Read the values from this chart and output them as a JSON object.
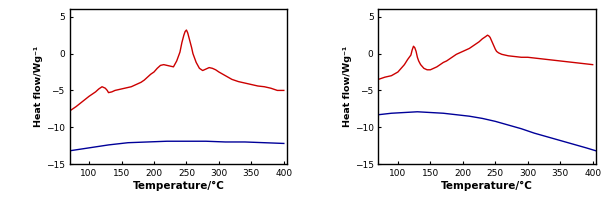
{
  "xlim": [
    70,
    405
  ],
  "ylim": [
    -15,
    6
  ],
  "yticks": [
    -15,
    -10,
    -5,
    0,
    5
  ],
  "xticks": [
    100,
    150,
    200,
    250,
    300,
    350,
    400
  ],
  "xlabel": "Temperature/°C",
  "ylabel": "Heat flow/Wg⁻¹",
  "red_color": "#cc0000",
  "blue_color": "#000099",
  "linewidth": 1.0,
  "left_red_x": [
    70,
    80,
    90,
    100,
    110,
    115,
    120,
    125,
    128,
    130,
    135,
    140,
    145,
    150,
    155,
    160,
    165,
    170,
    175,
    180,
    185,
    190,
    195,
    200,
    205,
    210,
    215,
    220,
    225,
    230,
    235,
    240,
    243,
    246,
    248,
    250,
    252,
    255,
    258,
    260,
    265,
    270,
    275,
    280,
    285,
    290,
    295,
    300,
    310,
    320,
    330,
    340,
    350,
    360,
    370,
    380,
    390,
    400
  ],
  "left_red_y": [
    -7.8,
    -7.2,
    -6.5,
    -5.8,
    -5.2,
    -4.8,
    -4.5,
    -4.7,
    -5.0,
    -5.3,
    -5.2,
    -5.0,
    -4.9,
    -4.8,
    -4.7,
    -4.6,
    -4.5,
    -4.3,
    -4.1,
    -3.9,
    -3.6,
    -3.2,
    -2.8,
    -2.5,
    -2.0,
    -1.6,
    -1.5,
    -1.6,
    -1.7,
    -1.8,
    -1.0,
    0.2,
    1.5,
    2.5,
    3.0,
    3.2,
    2.8,
    1.8,
    0.8,
    0.0,
    -1.2,
    -2.0,
    -2.3,
    -2.1,
    -1.9,
    -2.0,
    -2.2,
    -2.5,
    -3.0,
    -3.5,
    -3.8,
    -4.0,
    -4.2,
    -4.4,
    -4.5,
    -4.7,
    -5.0,
    -5.0
  ],
  "left_blue_x": [
    70,
    100,
    130,
    160,
    190,
    220,
    250,
    280,
    310,
    340,
    370,
    400
  ],
  "left_blue_y": [
    -13.2,
    -12.8,
    -12.4,
    -12.1,
    -12.0,
    -11.9,
    -11.9,
    -11.9,
    -12.0,
    -12.0,
    -12.1,
    -12.2
  ],
  "right_red_x": [
    70,
    80,
    90,
    100,
    105,
    110,
    115,
    120,
    122,
    124,
    126,
    128,
    130,
    132,
    135,
    140,
    145,
    150,
    155,
    160,
    165,
    170,
    175,
    180,
    185,
    190,
    195,
    200,
    205,
    210,
    215,
    220,
    225,
    230,
    235,
    238,
    240,
    242,
    244,
    246,
    248,
    250,
    252,
    255,
    260,
    265,
    270,
    280,
    290,
    300,
    310,
    320,
    330,
    340,
    350,
    360,
    370,
    380,
    390,
    400
  ],
  "right_red_y": [
    -3.5,
    -3.2,
    -3.0,
    -2.5,
    -2.0,
    -1.5,
    -0.8,
    -0.2,
    0.5,
    1.0,
    0.8,
    0.3,
    -0.5,
    -1.0,
    -1.5,
    -2.0,
    -2.2,
    -2.2,
    -2.0,
    -1.8,
    -1.5,
    -1.2,
    -1.0,
    -0.7,
    -0.4,
    -0.1,
    0.1,
    0.3,
    0.5,
    0.7,
    1.0,
    1.3,
    1.6,
    2.0,
    2.3,
    2.5,
    2.4,
    2.2,
    1.8,
    1.4,
    1.0,
    0.6,
    0.3,
    0.1,
    -0.1,
    -0.2,
    -0.3,
    -0.4,
    -0.5,
    -0.5,
    -0.6,
    -0.7,
    -0.8,
    -0.9,
    -1.0,
    -1.1,
    -1.2,
    -1.3,
    -1.4,
    -1.5
  ],
  "right_blue_x": [
    70,
    90,
    110,
    130,
    150,
    170,
    190,
    210,
    230,
    250,
    270,
    290,
    310,
    330,
    350,
    370,
    390,
    405
  ],
  "right_blue_y": [
    -8.3,
    -8.1,
    -8.0,
    -7.9,
    -8.0,
    -8.1,
    -8.3,
    -8.5,
    -8.8,
    -9.2,
    -9.7,
    -10.2,
    -10.8,
    -11.3,
    -11.8,
    -12.3,
    -12.8,
    -13.2
  ]
}
